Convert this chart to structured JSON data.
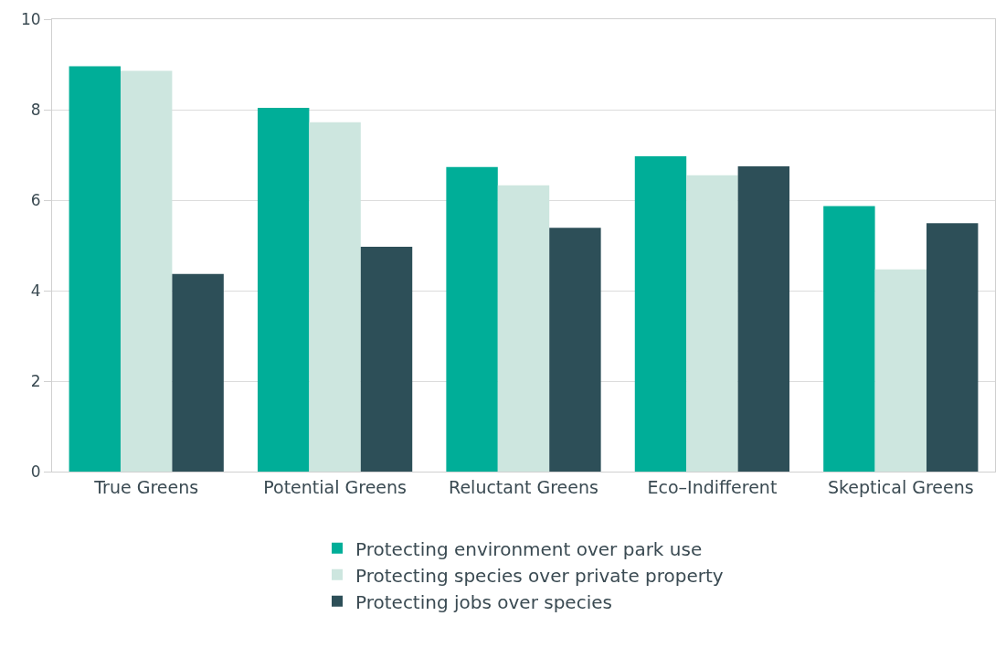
{
  "chart_data": {
    "type": "bar",
    "categories": [
      "True Greens",
      "Potential Greens",
      "Reluctant Greens",
      "Eco–Indifferent",
      "Skeptical Greens"
    ],
    "series": [
      {
        "name": "Protecting environment over park use",
        "color": "#00ae98",
        "values": [
          8.96,
          8.04,
          6.73,
          6.97,
          5.87
        ]
      },
      {
        "name": "Protecting species over private property",
        "color": "#cde6df",
        "values": [
          8.86,
          7.72,
          6.33,
          6.55,
          4.47
        ]
      },
      {
        "name": "Protecting jobs over species",
        "color": "#2d4f58",
        "values": [
          4.37,
          4.97,
          5.39,
          6.75,
          5.49
        ]
      }
    ],
    "ylim": [
      0,
      10
    ],
    "yticks": [
      0,
      2,
      4,
      6,
      8,
      10
    ],
    "grid": "y",
    "legend": "bottom"
  }
}
